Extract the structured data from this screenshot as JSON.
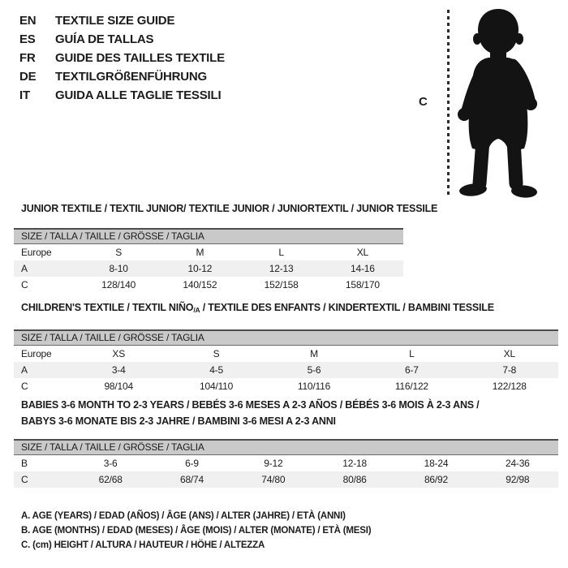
{
  "languages": [
    {
      "code": "EN",
      "label": "TEXTILE SIZE GUIDE"
    },
    {
      "code": "ES",
      "label": "GUÍA DE TALLAS"
    },
    {
      "code": "FR",
      "label": "GUIDE DES TAILLES TEXTILE"
    },
    {
      "code": "DE",
      "label": "TEXTILGRÖßENFÜHRUNG"
    },
    {
      "code": "IT",
      "label": "GUIDA ALLE TAGLIE TESSILI"
    }
  ],
  "figure": {
    "measure_label": "C",
    "image_name": "toddler-silhouette"
  },
  "colors": {
    "header_bar_bg": "#c9c9c9",
    "row_shaded_bg": "#f0f0f0",
    "text": "#1c1c1c",
    "silhouette": "#131313"
  },
  "tables": [
    {
      "title": "JUNIOR TEXTILE / TEXTIL JUNIOR/ TEXTILE JUNIOR / JUNIORTEXTIL / JUNIOR TESSILE",
      "size_header": "SIZE / TALLA / TAILLE / GRÖSSE / TAGLIA",
      "rows": [
        {
          "label": "Europe",
          "cells": [
            "S",
            "M",
            "L",
            "XL"
          ]
        },
        {
          "label": "A",
          "cells": [
            "8-10",
            "10-12",
            "12-13",
            "14-16"
          ]
        },
        {
          "label": "C",
          "cells": [
            "128/140",
            "140/152",
            "152/158",
            "158/170"
          ]
        }
      ]
    },
    {
      "title_pre": "CHILDREN'S TEXTILE / TEXTIL NIÑO",
      "title_sub": "/A",
      "title_post": " / TEXTILE DES ENFANTS / KINDERTEXTIL / BAMBINI TESSILE",
      "size_header": "SIZE / TALLA / TAILLE / GRÖSSE / TAGLIA",
      "rows": [
        {
          "label": "Europe",
          "cells": [
            "XS",
            "S",
            "M",
            "L",
            "XL"
          ]
        },
        {
          "label": "A",
          "cells": [
            "3-4",
            "4-5",
            "5-6",
            "6-7",
            "7-8"
          ]
        },
        {
          "label": "C",
          "cells": [
            "98/104",
            "104/110",
            "110/116",
            "116/122",
            "122/128"
          ]
        }
      ]
    },
    {
      "title_line1": "BABIES 3-6 MONTH TO 2-3 YEARS / BEBÉS 3-6 MESES A 2-3 AÑOS / BÉBÉS 3-6 MOIS À 2-3 ANS /",
      "title_line2": "BABYS 3-6 MONATE BIS 2-3 JAHRE / BAMBINI 3-6 MESI A 2-3 ANNI",
      "size_header": "SIZE / TALLA / TAILLE / GRÖSSE / TAGLIA",
      "rows": [
        {
          "label": "B",
          "cells": [
            "3-6",
            "6-9",
            "9-12",
            "12-18",
            "18-24",
            "24-36"
          ]
        },
        {
          "label": "C",
          "cells": [
            "62/68",
            "68/74",
            "74/80",
            "80/86",
            "86/92",
            "92/98"
          ]
        }
      ]
    }
  ],
  "notes": [
    "A. AGE (YEARS) / EDAD (AÑOS) / ÂGE (ANS) / ALTER (JAHRE) / ETÀ (ANNI)",
    "B. AGE (MONTHS) / EDAD (MESES) / ÂGE (MOIS) / ALTER (MONATE) / ETÀ (MESI)",
    "C. (cm) HEIGHT / ALTURA / HAUTEUR / HÖHE / ALTEZZA"
  ]
}
